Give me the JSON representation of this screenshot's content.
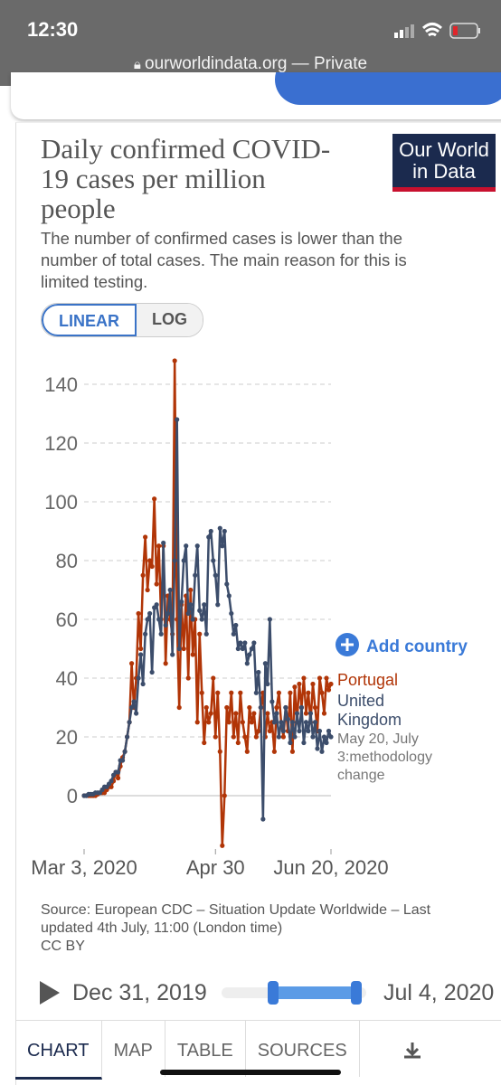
{
  "status_bar": {
    "time": "12:30",
    "url": "ourworldindata.org — Private"
  },
  "logo": "Our World in Data",
  "chart_data": {
    "type": "line",
    "title": "Daily confirmed COVID-19 cases per million people",
    "subtitle": "The number of confirmed cases is lower than the number of total cases. The main reason for this is limited testing.",
    "scale_buttons": [
      "LINEAR",
      "LOG"
    ],
    "add_country": "Add country",
    "annotation": "May 20, July 3:methodology change",
    "source": "Source: European CDC – Situation Update Worldwide – Last updated 4th July, 11:00 (London time)",
    "license": "CC BY",
    "x": [
      "2020-03-03",
      "2020-03-04",
      "2020-03-05",
      "2020-03-06",
      "2020-03-07",
      "2020-03-08",
      "2020-03-09",
      "2020-03-10",
      "2020-03-11",
      "2020-03-12",
      "2020-03-13",
      "2020-03-14",
      "2020-03-15",
      "2020-03-16",
      "2020-03-17",
      "2020-03-18",
      "2020-03-19",
      "2020-03-20",
      "2020-03-21",
      "2020-03-22",
      "2020-03-23",
      "2020-03-24",
      "2020-03-25",
      "2020-03-26",
      "2020-03-27",
      "2020-03-28",
      "2020-03-29",
      "2020-03-30",
      "2020-03-31",
      "2020-04-01",
      "2020-04-02",
      "2020-04-03",
      "2020-04-04",
      "2020-04-05",
      "2020-04-06",
      "2020-04-07",
      "2020-04-08",
      "2020-04-09",
      "2020-04-10",
      "2020-04-11",
      "2020-04-12",
      "2020-04-13",
      "2020-04-14",
      "2020-04-15",
      "2020-04-16",
      "2020-04-17",
      "2020-04-18",
      "2020-04-19",
      "2020-04-20",
      "2020-04-21",
      "2020-04-22",
      "2020-04-23",
      "2020-04-24",
      "2020-04-25",
      "2020-04-26",
      "2020-04-27",
      "2020-04-28",
      "2020-04-29",
      "2020-04-30",
      "2020-05-01",
      "2020-05-02",
      "2020-05-03",
      "2020-05-04",
      "2020-05-05",
      "2020-05-06",
      "2020-05-07",
      "2020-05-08",
      "2020-05-09",
      "2020-05-10",
      "2020-05-11",
      "2020-05-12",
      "2020-05-13",
      "2020-05-14",
      "2020-05-15",
      "2020-05-16",
      "2020-05-17",
      "2020-05-18",
      "2020-05-19",
      "2020-05-20",
      "2020-05-21",
      "2020-05-22",
      "2020-05-23",
      "2020-05-24",
      "2020-05-25",
      "2020-05-26",
      "2020-05-27",
      "2020-05-28",
      "2020-05-29",
      "2020-05-30",
      "2020-05-31",
      "2020-06-01",
      "2020-06-02",
      "2020-06-03",
      "2020-06-04",
      "2020-06-05",
      "2020-06-06",
      "2020-06-07",
      "2020-06-08",
      "2020-06-09",
      "2020-06-10",
      "2020-06-11",
      "2020-06-12",
      "2020-06-13",
      "2020-06-14",
      "2020-06-15",
      "2020-06-16",
      "2020-06-17",
      "2020-06-18",
      "2020-06-19",
      "2020-06-20"
    ],
    "series": [
      {
        "name": "Portugal",
        "color": "#b13507",
        "values": [
          0,
          0,
          0,
          0,
          0,
          0,
          0.5,
          1,
          1,
          1,
          2,
          3,
          3,
          5,
          8,
          6,
          10,
          13,
          15,
          20,
          25,
          45,
          30,
          40,
          62,
          50,
          75,
          88,
          70,
          80,
          78,
          101,
          72,
          85,
          60,
          85,
          45,
          68,
          60,
          55,
          148,
          60,
          30,
          65,
          50,
          68,
          40,
          70,
          48,
          60,
          25,
          55,
          35,
          18,
          30,
          25,
          28,
          40,
          20,
          35,
          15,
          -17,
          0,
          30,
          25,
          35,
          20,
          28,
          18,
          35,
          25,
          20,
          15,
          30,
          25,
          28,
          20,
          22,
          30,
          35,
          20,
          28,
          22,
          25,
          15,
          30,
          35,
          25,
          20,
          30,
          22,
          35,
          15,
          37,
          25,
          38,
          30,
          40,
          28,
          35,
          25,
          38,
          30,
          22,
          40,
          35,
          28,
          40,
          36,
          38
        ]
      },
      {
        "name": "United Kingdom",
        "color": "#3c4d6b",
        "values": [
          0,
          0,
          0.5,
          0.5,
          0.5,
          1,
          1,
          1,
          2,
          3,
          3,
          4,
          5,
          7,
          8,
          8,
          12,
          12,
          15,
          20,
          25,
          30,
          32,
          28,
          40,
          48,
          38,
          55,
          60,
          62,
          42,
          64,
          65,
          60,
          55,
          86,
          58,
          62,
          70,
          48,
          80,
          128,
          50,
          66,
          80,
          85,
          62,
          65,
          60,
          75,
          85,
          63,
          60,
          65,
          55,
          88,
          90,
          80,
          75,
          65,
          91,
          85,
          90,
          72,
          68,
          62,
          55,
          58,
          50,
          52,
          50,
          52,
          45,
          48,
          50,
          52,
          35,
          42,
          30,
          -8,
          45,
          38,
          60,
          32,
          25,
          28,
          20,
          25,
          22,
          30,
          26,
          18,
          25,
          20,
          28,
          22,
          30,
          18,
          25,
          22,
          28,
          20,
          25,
          16,
          22,
          15,
          20,
          18,
          22,
          20
        ]
      }
    ],
    "xlim": [
      "2020-03-03",
      "2020-06-20"
    ],
    "xticks": [
      {
        "value": "2020-03-03",
        "label": "Mar 3, 2020"
      },
      {
        "value": "2020-04-30",
        "label": "Apr 30"
      },
      {
        "value": "2020-06-20",
        "label": "Jun 20, 2020"
      }
    ],
    "ylim": [
      -20,
      150
    ],
    "yticks": [
      0,
      20,
      40,
      60,
      80,
      100,
      120,
      140
    ],
    "grid": true
  },
  "timeline": {
    "start": "Dec 31, 2019",
    "end": "Jul 4, 2020"
  },
  "tabs": [
    "CHART",
    "MAP",
    "TABLE",
    "SOURCES"
  ]
}
